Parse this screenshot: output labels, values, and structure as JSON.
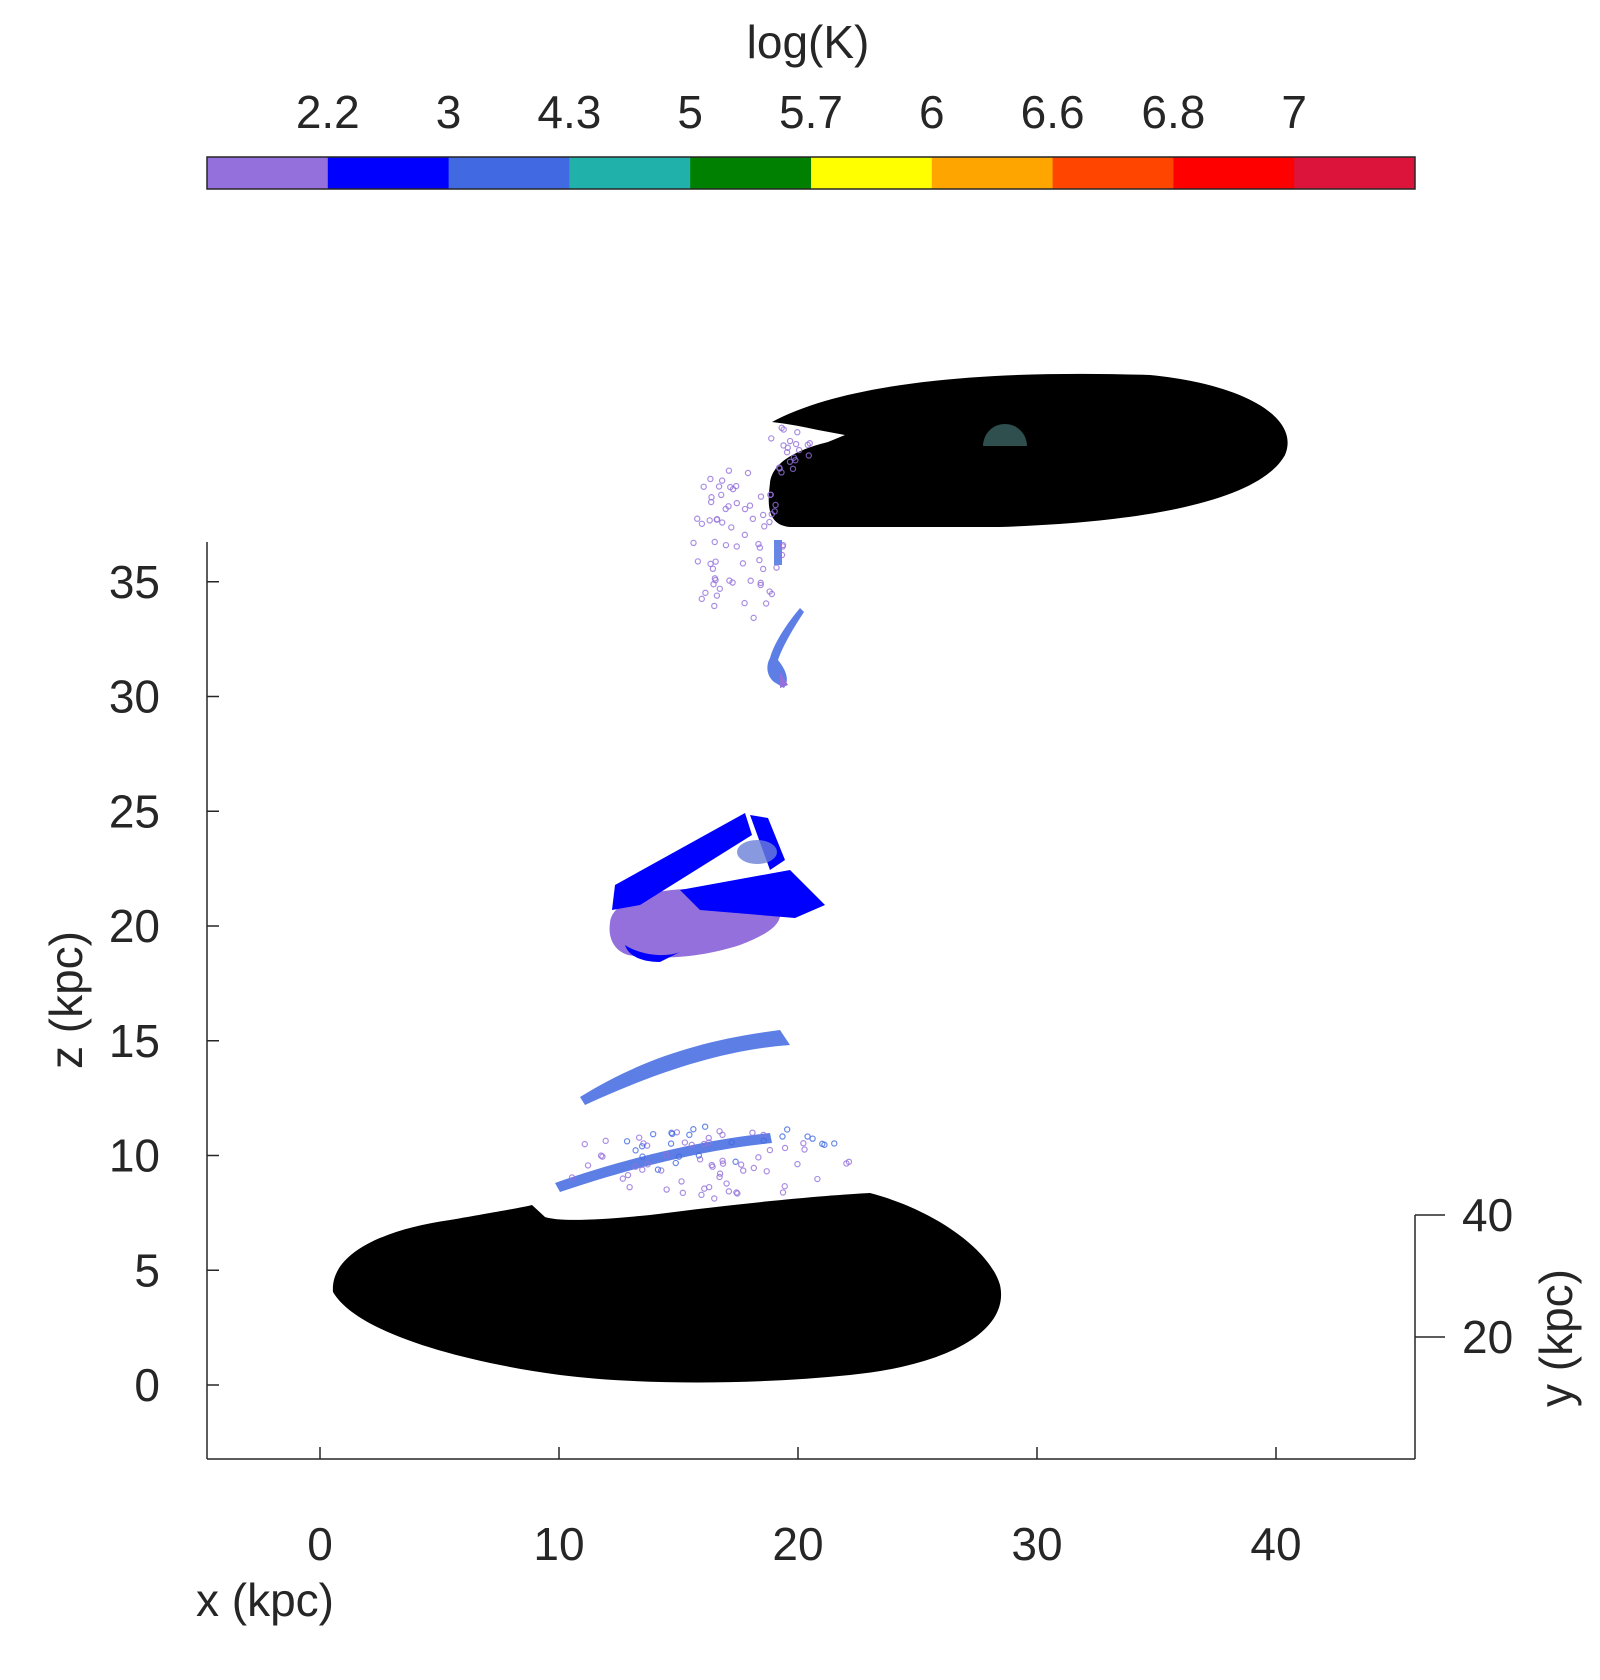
{
  "chart_data": {
    "type": "scatter",
    "projection": "3d",
    "title": "",
    "xlabel": "x (kpc)",
    "ylabel": "y (kpc)",
    "zlabel": "z (kpc)",
    "xlim": [
      -5,
      46
    ],
    "zlim": [
      -3,
      36.6
    ],
    "xticks": [
      "0",
      "10",
      "20",
      "30",
      "40"
    ],
    "yticks": [
      "20",
      "40"
    ],
    "zticks": [
      "0",
      "5",
      "10",
      "15",
      "20",
      "25",
      "30",
      "35"
    ],
    "grid": false,
    "colorbar": {
      "label": "log(K)",
      "orientation": "horizontal",
      "placement": "top",
      "tick_labels": [
        "2.2",
        "3",
        "4.3",
        "5",
        "5.7",
        "6",
        "6.6",
        "6.8",
        "7"
      ],
      "colors": [
        "#9370DB",
        "#0000FF",
        "#4169E1",
        "#20B2AA",
        "#008000",
        "#FFFF00",
        "#FFA500",
        "#FF4500",
        "#FF0000",
        "#DC143C"
      ]
    },
    "galaxy_colors": {
      "disk": "#000000",
      "bulge": "#2F4F4F"
    },
    "series": [
      {
        "color": "#000000",
        "x": [
          -4,
          9,
          23,
          29
        ],
        "z": [
          2,
          8,
          8.5,
          4.5
        ]
      },
      {
        "color": "#000000",
        "x": [
          19,
          28,
          37
        ],
        "z": [
          37.5,
          45,
          41
        ]
      },
      {
        "color": "#9370DB",
        "x": [
          12,
          14,
          18,
          20,
          16.5,
          19
        ],
        "z": [
          19.5,
          19.3,
          20.5,
          21.5,
          38,
          30.5
        ]
      },
      {
        "color": "#0000FF",
        "x": [
          12.5,
          17.5,
          18.5,
          21.5,
          15
        ],
        "z": [
          21,
          24,
          24.5,
          20.5,
          21.5
        ]
      },
      {
        "color": "#4169E1",
        "x": [
          10.5,
          14,
          17.5,
          19.5,
          9,
          13,
          17,
          19,
          18.5,
          20
        ],
        "z": [
          12.2,
          13.5,
          15,
          14.7,
          8.6,
          9.8,
          10.6,
          10.5,
          31,
          33.5
        ]
      }
    ]
  }
}
